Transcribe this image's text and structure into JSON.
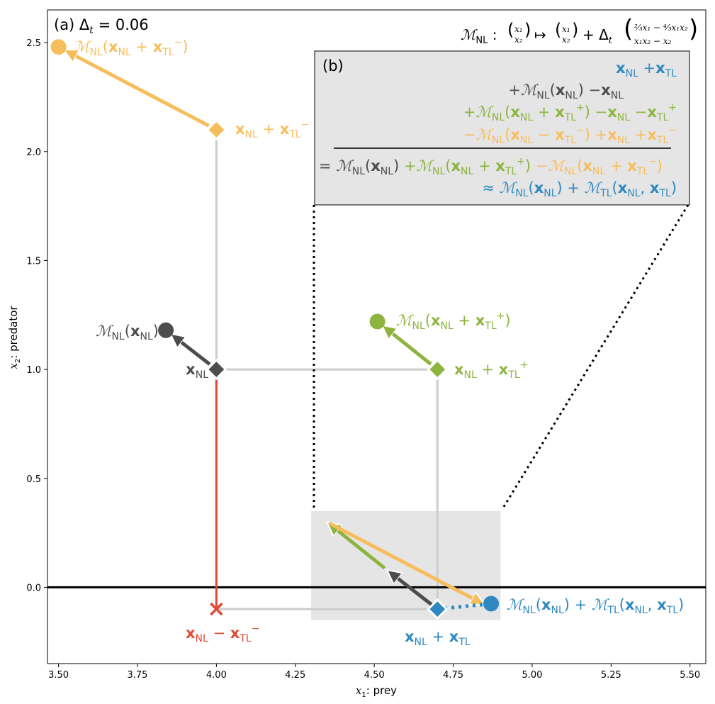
{
  "chart_data": {
    "type": "scatter",
    "panel_a_label": "(a) Δ",
    "panel_a_sub": "t",
    "panel_a_value": " = 0.06",
    "xlabel_var": "x",
    "xlabel_sub": "1",
    "xlabel_rest": ": prey",
    "ylabel_var": "x",
    "ylabel_sub": "2",
    "ylabel_rest": ": predator",
    "xlim": [
      3.465,
      5.55
    ],
    "ylim": [
      -0.35,
      2.65
    ],
    "x_ticks": [
      "3.50",
      "3.75",
      "4.00",
      "4.25",
      "4.50",
      "4.75",
      "5.00",
      "5.25",
      "5.50"
    ],
    "x_tick_values": [
      3.5,
      3.75,
      4.0,
      4.25,
      4.5,
      4.75,
      5.0,
      5.25,
      5.5
    ],
    "y_ticks": [
      "0.0",
      "0.5",
      "1.0",
      "1.5",
      "2.0",
      "2.5"
    ],
    "y_tick_values": [
      0.0,
      0.5,
      1.0,
      1.5,
      2.0,
      2.5
    ],
    "colors": {
      "nl": "#4d4d4d",
      "plus": "#8db43f",
      "minus": "#f7bd5b",
      "tl": "#2f88c0",
      "red": "#e04a33",
      "grid": "#cccccc",
      "inset": "#e5e5e5"
    },
    "points": [
      {
        "name": "x_NL",
        "x": 4.0,
        "y": 1.0
      },
      {
        "name": "M_NL(x_NL)",
        "x": 3.84,
        "y": 1.18
      },
      {
        "name": "x_NL + x_TL+",
        "x": 4.7,
        "y": 1.0
      },
      {
        "name": "M_NL(x_NL + x_TL+)",
        "x": 4.51,
        "y": 1.22
      },
      {
        "name": "x_NL + x_TL-",
        "x": 4.0,
        "y": 2.1
      },
      {
        "name": "M_NL(x_NL + x_TL-)",
        "x": 3.5,
        "y": 2.48
      },
      {
        "name": "x_NL - x_TL-",
        "x": 4.0,
        "y": -0.1
      },
      {
        "name": "x_NL + x_TL",
        "x": 4.7,
        "y": -0.1
      },
      {
        "name": "M_NL(x_NL) + M_TL(x_NL, x_TL)",
        "x": 4.87,
        "y": -0.075
      }
    ],
    "inset_region": {
      "x": [
        4.3,
        4.9
      ],
      "y": [
        -0.15,
        0.35
      ]
    },
    "labels": {
      "x_nl": "x",
      "nl_sub": "NL",
      "tl_sub": "TL",
      "m": "ℳ",
      "map_title_prefix": "ℳ",
      "map_eq_1": "(x₁, x₂) ↦ (x₁, x₂) + Δ",
      "map_num": "⅔x₁ − ⁴⁄₃x₁x₂",
      "map_den": "x₁x₂ − x₂"
    },
    "panel_b_label": "(b)"
  }
}
